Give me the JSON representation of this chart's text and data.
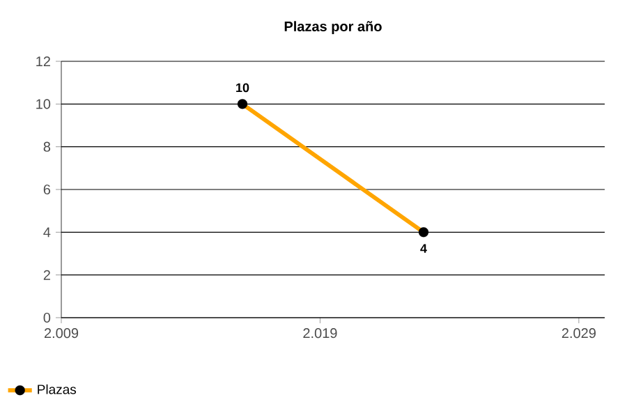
{
  "chart_data": {
    "type": "line",
    "title": "Plazas por año",
    "x": [
      2016,
      2023
    ],
    "series": [
      {
        "name": "Plazas",
        "color": "#ffa500",
        "values": [
          10,
          4
        ]
      }
    ],
    "xlim": [
      2009,
      2030
    ],
    "xticks": [
      {
        "value": 2009,
        "label": "2.009"
      },
      {
        "value": 2019,
        "label": "2.019"
      },
      {
        "value": 2029,
        "label": "2.029"
      }
    ],
    "ylim": [
      0,
      12
    ],
    "yticks": [
      0,
      2,
      4,
      6,
      8,
      10,
      12
    ],
    "grid": "y",
    "legend": "bottom left",
    "marker": "circle",
    "line_style": "solid",
    "data_labels": true
  }
}
